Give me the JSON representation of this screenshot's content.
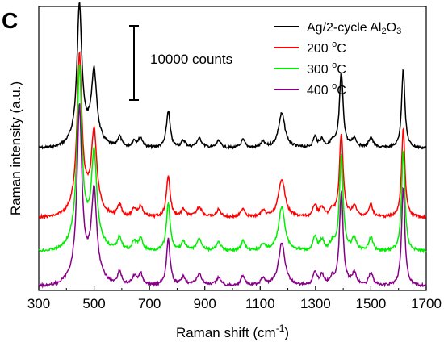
{
  "chart_data": {
    "type": "line",
    "panel_label": "C",
    "xlabel": "Raman shift (cm",
    "xlabel_sup": "-1",
    "xlabel_end": ")",
    "ylabel": "Raman intensity (a.u.)",
    "xlim": [
      300,
      1700
    ],
    "x_ticks": [
      "300",
      "500",
      "700",
      "900",
      "1100",
      "1300",
      "1500",
      "1700"
    ],
    "x_tick_values": [
      300,
      500,
      700,
      900,
      1100,
      1300,
      1500,
      1700
    ],
    "y_ticks_labeled": false,
    "grid": false,
    "legend_position": "top-right",
    "scale_bar_label": "10000 counts",
    "scale_bar_counts": 10000,
    "series": [
      {
        "name_parts": [
          "Ag/2-cycle Al",
          "2",
          "O",
          "3"
        ],
        "color": "#000000",
        "baseline": 0,
        "scale": 1.0
      },
      {
        "name_parts": [
          "200 ",
          "o",
          "C"
        ],
        "color": "#ff0000",
        "baseline": 0,
        "scale": 1.0
      },
      {
        "name_parts": [
          "300 ",
          "o",
          "C"
        ],
        "color": "#00ee00",
        "baseline": 0,
        "scale": 1.0
      },
      {
        "name_parts": [
          "400 ",
          "o",
          "C"
        ],
        "color": "#880088",
        "baseline": 0,
        "scale": 1.0
      }
    ],
    "peaks": [
      {
        "x": 447,
        "h": 1.0,
        "w": 10
      },
      {
        "x": 500,
        "h": 0.5,
        "w": 11
      },
      {
        "x": 592,
        "h": 0.08,
        "w": 9
      },
      {
        "x": 645,
        "h": 0.05,
        "w": 9
      },
      {
        "x": 668,
        "h": 0.07,
        "w": 10
      },
      {
        "x": 768,
        "h": 0.28,
        "w": 8
      },
      {
        "x": 823,
        "h": 0.05,
        "w": 10
      },
      {
        "x": 880,
        "h": 0.07,
        "w": 12
      },
      {
        "x": 950,
        "h": 0.05,
        "w": 10
      },
      {
        "x": 1038,
        "h": 0.06,
        "w": 9
      },
      {
        "x": 1110,
        "h": 0.04,
        "w": 10
      },
      {
        "x": 1178,
        "h": 0.26,
        "w": 14
      },
      {
        "x": 1298,
        "h": 0.08,
        "w": 8
      },
      {
        "x": 1323,
        "h": 0.06,
        "w": 9
      },
      {
        "x": 1360,
        "h": 0.04,
        "w": 10
      },
      {
        "x": 1393,
        "h": 0.56,
        "w": 8
      },
      {
        "x": 1440,
        "h": 0.07,
        "w": 10
      },
      {
        "x": 1500,
        "h": 0.08,
        "w": 9
      },
      {
        "x": 1617,
        "h": 0.6,
        "w": 7
      }
    ]
  }
}
